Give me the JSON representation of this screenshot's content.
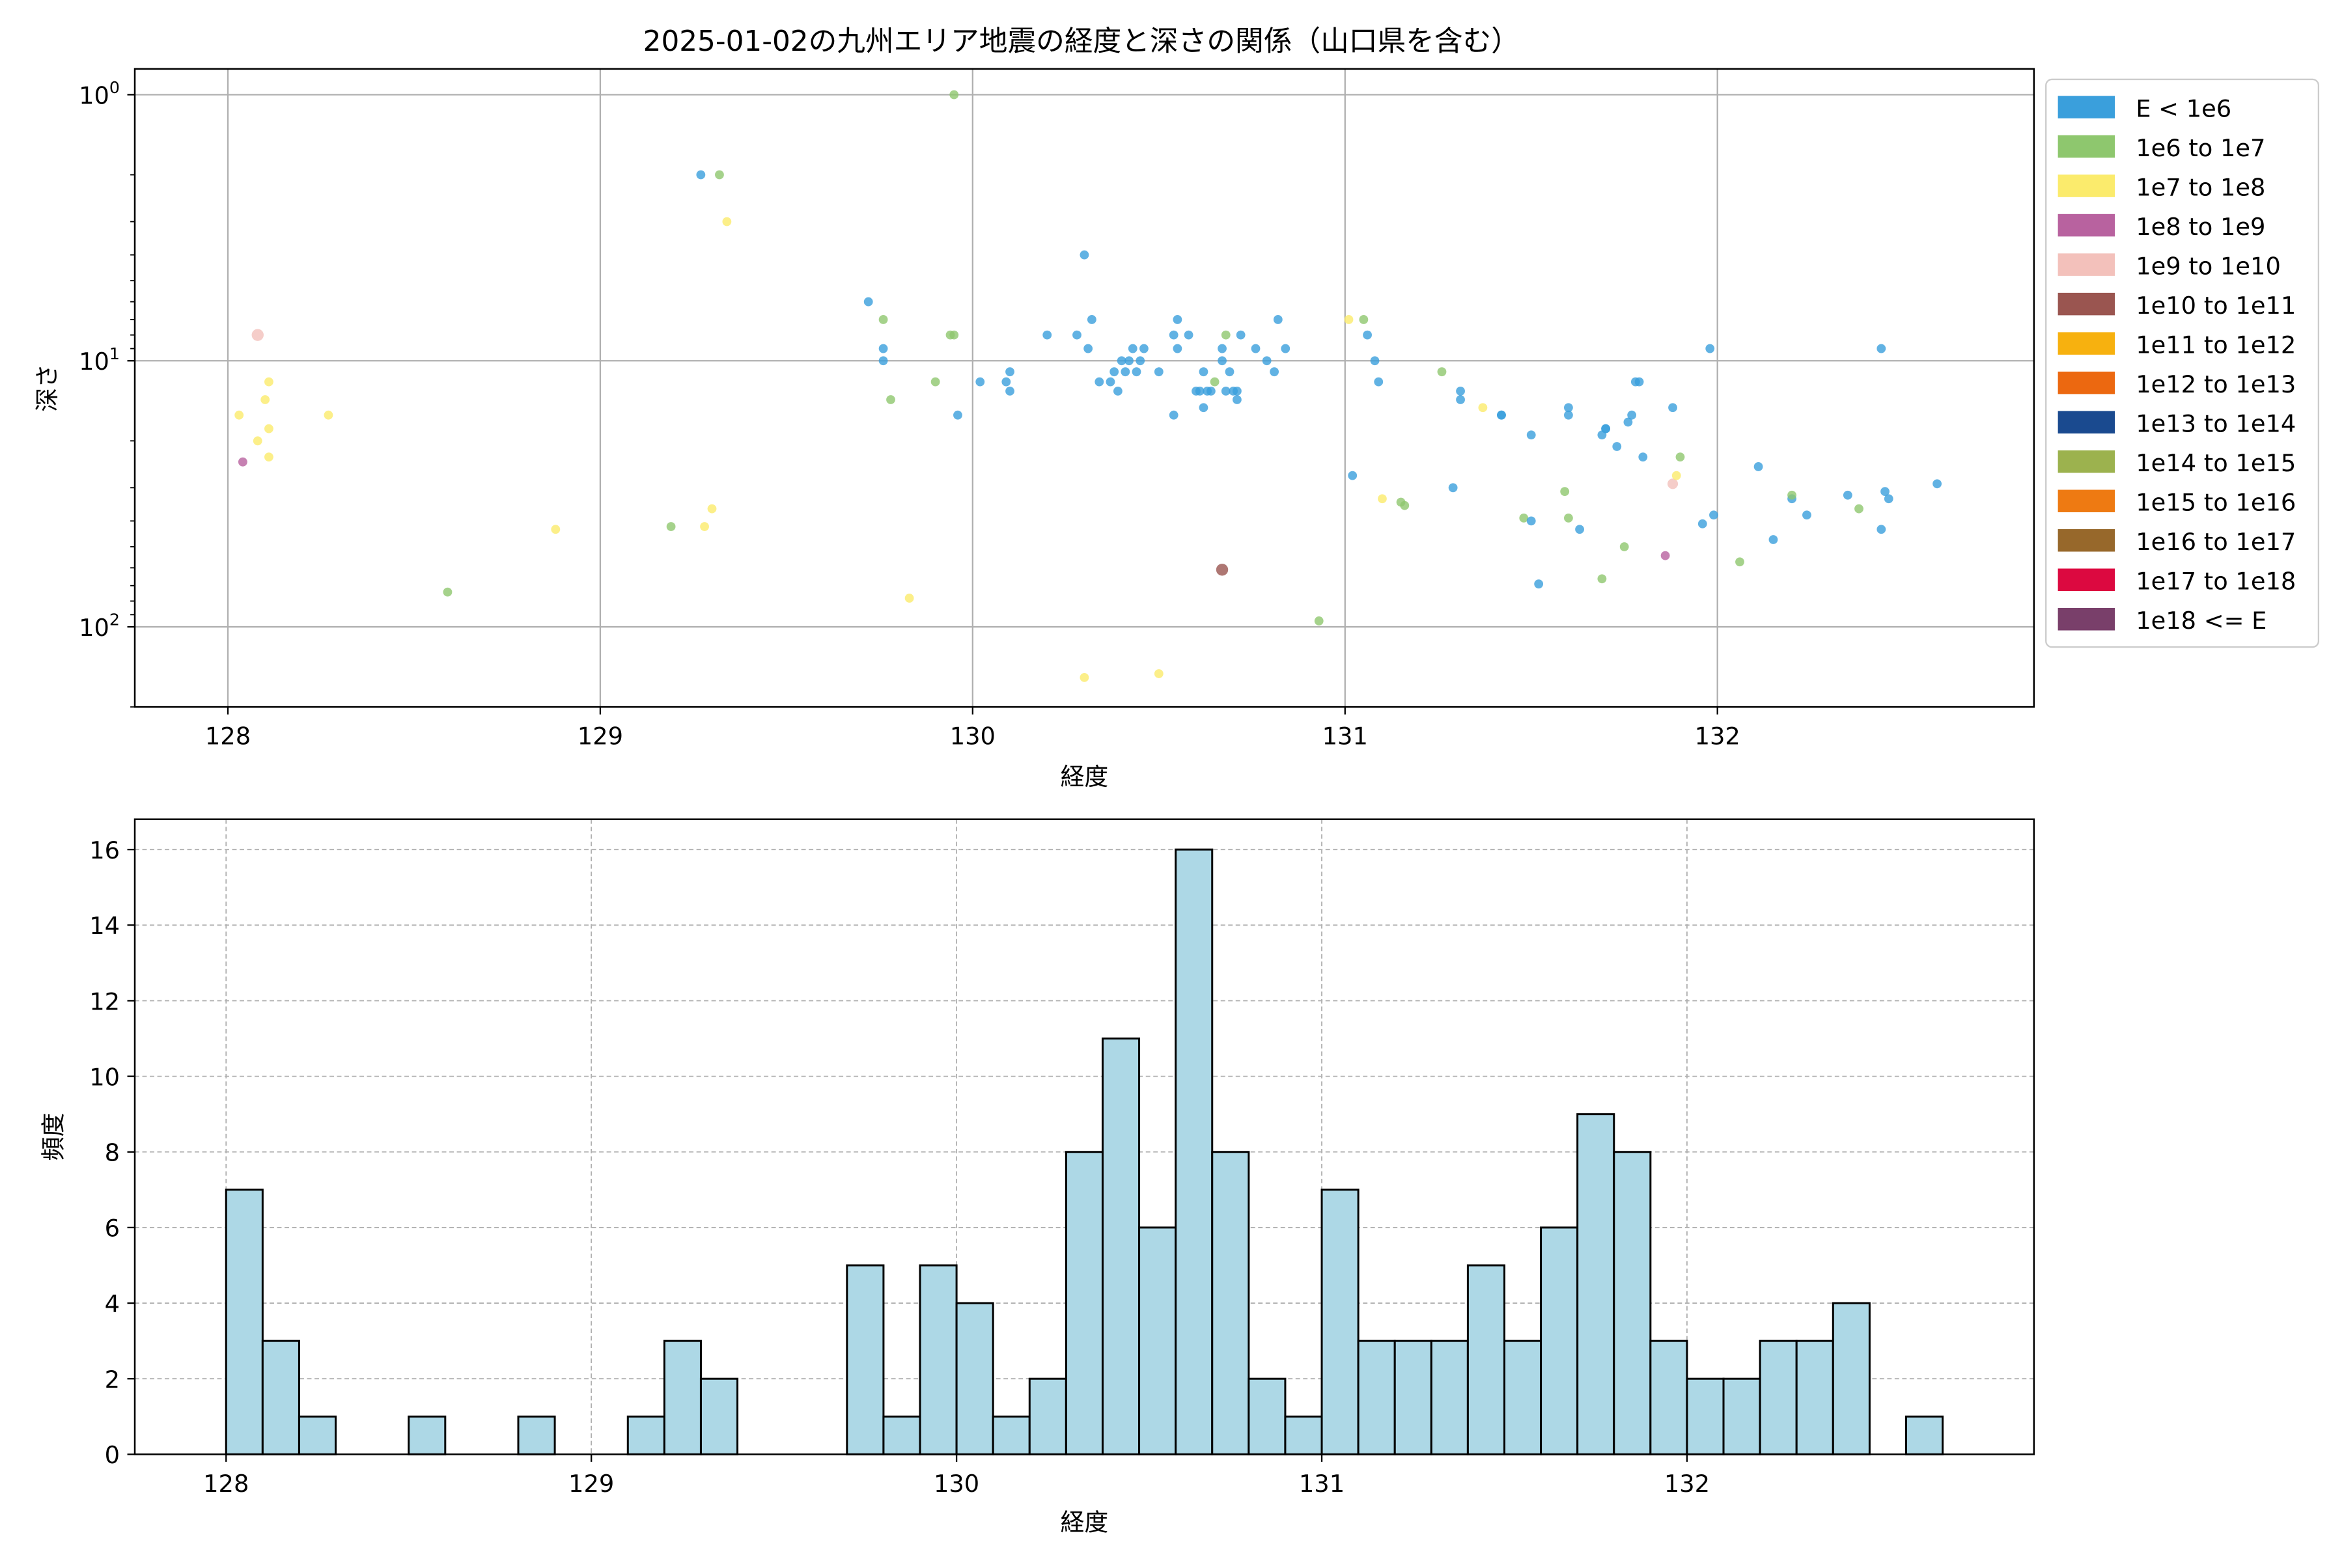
{
  "chart_data": [
    {
      "type": "scatter",
      "title": "2025-01-02の九州エリア地震の経度と深さの関係（山口県を含む）",
      "xlabel": "経度",
      "ylabel": "深さ",
      "xlim": [
        127.75,
        132.85
      ],
      "ylim": [
        200,
        0.8
      ],
      "y_scale": "log",
      "y_inverted": true,
      "grid": true,
      "legend_position": "outside-right",
      "x_ticks": [
        128,
        129,
        130,
        131,
        132
      ],
      "y_ticks": [
        {
          "value": 1,
          "base": "10",
          "exp": "0"
        },
        {
          "value": 10,
          "base": "10",
          "exp": "1"
        },
        {
          "value": 100,
          "base": "10",
          "exp": "2"
        }
      ],
      "legend": [
        {
          "label": "E < 1e6",
          "color": "#3a9fdc"
        },
        {
          "label": "1e6 to 1e7",
          "color": "#8ec76e"
        },
        {
          "label": "1e7 to 1e8",
          "color": "#fbeb6c"
        },
        {
          "label": "1e8 to 1e9",
          "color": "#b8629f"
        },
        {
          "label": "1e9 to 1e10",
          "color": "#f3c1bb"
        },
        {
          "label": "1e10 to 1e11",
          "color": "#9a5550"
        },
        {
          "label": "1e11 to 1e12",
          "color": "#f7b10f"
        },
        {
          "label": "1e12 to 1e13",
          "color": "#ec6810"
        },
        {
          "label": "1e13 to 1e14",
          "color": "#1a4a8f"
        },
        {
          "label": "1e14 to 1e15",
          "color": "#9cb24e"
        },
        {
          "label": "1e15 to 1e16",
          "color": "#ee7a12"
        },
        {
          "label": "1e16 to 1e17",
          "color": "#97682b"
        },
        {
          "label": "1e17 to 1e18",
          "color": "#dc0940"
        },
        {
          "label": "1e18 <= E",
          "color": "#793f6a"
        }
      ],
      "points": [
        {
          "x": 128.03,
          "y": 16,
          "c": 2
        },
        {
          "x": 128.04,
          "y": 24,
          "c": 3
        },
        {
          "x": 128.08,
          "y": 8,
          "c": 4,
          "s": 7
        },
        {
          "x": 128.08,
          "y": 20,
          "c": 2
        },
        {
          "x": 128.1,
          "y": 14,
          "c": 2
        },
        {
          "x": 128.11,
          "y": 12,
          "c": 2
        },
        {
          "x": 128.11,
          "y": 18,
          "c": 2
        },
        {
          "x": 128.11,
          "y": 23,
          "c": 2
        },
        {
          "x": 128.27,
          "y": 16,
          "c": 2
        },
        {
          "x": 128.59,
          "y": 74,
          "c": 1
        },
        {
          "x": 128.88,
          "y": 43,
          "c": 2
        },
        {
          "x": 129.19,
          "y": 42,
          "c": 1
        },
        {
          "x": 129.27,
          "y": 2,
          "c": 0
        },
        {
          "x": 129.28,
          "y": 42,
          "c": 2
        },
        {
          "x": 129.3,
          "y": 36,
          "c": 2
        },
        {
          "x": 129.32,
          "y": 2,
          "c": 1
        },
        {
          "x": 129.34,
          "y": 3,
          "c": 2
        },
        {
          "x": 129.72,
          "y": 6,
          "c": 0
        },
        {
          "x": 129.76,
          "y": 9,
          "c": 0
        },
        {
          "x": 129.76,
          "y": 10,
          "c": 0
        },
        {
          "x": 129.76,
          "y": 7,
          "c": 1
        },
        {
          "x": 129.78,
          "y": 14,
          "c": 1
        },
        {
          "x": 129.83,
          "y": 78,
          "c": 2
        },
        {
          "x": 129.9,
          "y": 12,
          "c": 1
        },
        {
          "x": 129.94,
          "y": 8,
          "c": 1
        },
        {
          "x": 129.95,
          "y": 8,
          "c": 1
        },
        {
          "x": 129.95,
          "y": 1,
          "c": 1
        },
        {
          "x": 129.96,
          "y": 16,
          "c": 0
        },
        {
          "x": 130.02,
          "y": 12,
          "c": 0
        },
        {
          "x": 130.09,
          "y": 12,
          "c": 0
        },
        {
          "x": 130.1,
          "y": 11,
          "c": 0
        },
        {
          "x": 130.1,
          "y": 13,
          "c": 0
        },
        {
          "x": 130.2,
          "y": 8,
          "c": 0
        },
        {
          "x": 130.28,
          "y": 8,
          "c": 0
        },
        {
          "x": 130.3,
          "y": 4,
          "c": 0
        },
        {
          "x": 130.31,
          "y": 9,
          "c": 0
        },
        {
          "x": 130.32,
          "y": 7,
          "c": 0
        },
        {
          "x": 130.3,
          "y": 155,
          "c": 2
        },
        {
          "x": 130.34,
          "y": 12,
          "c": 0
        },
        {
          "x": 130.37,
          "y": 12,
          "c": 0
        },
        {
          "x": 130.38,
          "y": 11,
          "c": 0
        },
        {
          "x": 130.39,
          "y": 13,
          "c": 0
        },
        {
          "x": 130.4,
          "y": 10,
          "c": 0
        },
        {
          "x": 130.41,
          "y": 11,
          "c": 0
        },
        {
          "x": 130.42,
          "y": 10,
          "c": 0
        },
        {
          "x": 130.43,
          "y": 9,
          "c": 0
        },
        {
          "x": 130.44,
          "y": 11,
          "c": 0
        },
        {
          "x": 130.45,
          "y": 10,
          "c": 0
        },
        {
          "x": 130.46,
          "y": 9,
          "c": 0
        },
        {
          "x": 130.5,
          "y": 11,
          "c": 0
        },
        {
          "x": 130.5,
          "y": 150,
          "c": 2
        },
        {
          "x": 130.54,
          "y": 8,
          "c": 0
        },
        {
          "x": 130.54,
          "y": 16,
          "c": 0
        },
        {
          "x": 130.55,
          "y": 7,
          "c": 0
        },
        {
          "x": 130.55,
          "y": 9,
          "c": 0
        },
        {
          "x": 130.58,
          "y": 8,
          "c": 0
        },
        {
          "x": 130.6,
          "y": 13,
          "c": 0
        },
        {
          "x": 130.61,
          "y": 13,
          "c": 0
        },
        {
          "x": 130.62,
          "y": 15,
          "c": 0
        },
        {
          "x": 130.62,
          "y": 11,
          "c": 0
        },
        {
          "x": 130.63,
          "y": 13,
          "c": 0
        },
        {
          "x": 130.64,
          "y": 13,
          "c": 0
        },
        {
          "x": 130.65,
          "y": 12,
          "c": 1
        },
        {
          "x": 130.67,
          "y": 9,
          "c": 0
        },
        {
          "x": 130.67,
          "y": 10,
          "c": 0
        },
        {
          "x": 130.68,
          "y": 13,
          "c": 0
        },
        {
          "x": 130.68,
          "y": 8,
          "c": 1
        },
        {
          "x": 130.67,
          "y": 61,
          "c": 5,
          "s": 7
        },
        {
          "x": 130.69,
          "y": 11,
          "c": 0
        },
        {
          "x": 130.7,
          "y": 13,
          "c": 0
        },
        {
          "x": 130.71,
          "y": 14,
          "c": 0
        },
        {
          "x": 130.71,
          "y": 13,
          "c": 0
        },
        {
          "x": 130.72,
          "y": 8,
          "c": 0
        },
        {
          "x": 130.76,
          "y": 9,
          "c": 0
        },
        {
          "x": 130.79,
          "y": 10,
          "c": 0
        },
        {
          "x": 130.81,
          "y": 11,
          "c": 0
        },
        {
          "x": 130.82,
          "y": 7,
          "c": 0
        },
        {
          "x": 130.84,
          "y": 9,
          "c": 0
        },
        {
          "x": 130.93,
          "y": 95,
          "c": 1
        },
        {
          "x": 131.01,
          "y": 7,
          "c": 2
        },
        {
          "x": 131.02,
          "y": 27,
          "c": 0
        },
        {
          "x": 131.05,
          "y": 7,
          "c": 1
        },
        {
          "x": 131.06,
          "y": 8,
          "c": 0
        },
        {
          "x": 131.08,
          "y": 10,
          "c": 0
        },
        {
          "x": 131.09,
          "y": 12,
          "c": 0
        },
        {
          "x": 131.1,
          "y": 33,
          "c": 2
        },
        {
          "x": 131.15,
          "y": 34,
          "c": 1
        },
        {
          "x": 131.16,
          "y": 35,
          "c": 1
        },
        {
          "x": 131.26,
          "y": 11,
          "c": 1
        },
        {
          "x": 131.29,
          "y": 30,
          "c": 0
        },
        {
          "x": 131.31,
          "y": 14,
          "c": 0
        },
        {
          "x": 131.31,
          "y": 13,
          "c": 0
        },
        {
          "x": 131.37,
          "y": 15,
          "c": 2
        },
        {
          "x": 131.42,
          "y": 16,
          "c": 0
        },
        {
          "x": 131.42,
          "y": 16,
          "c": 0
        },
        {
          "x": 131.48,
          "y": 39,
          "c": 1
        },
        {
          "x": 131.5,
          "y": 19,
          "c": 0
        },
        {
          "x": 131.5,
          "y": 40,
          "c": 0
        },
        {
          "x": 131.52,
          "y": 69,
          "c": 0
        },
        {
          "x": 131.59,
          "y": 31,
          "c": 1
        },
        {
          "x": 131.6,
          "y": 16,
          "c": 0
        },
        {
          "x": 131.6,
          "y": 15,
          "c": 0
        },
        {
          "x": 131.6,
          "y": 39,
          "c": 1
        },
        {
          "x": 131.63,
          "y": 43,
          "c": 0
        },
        {
          "x": 131.69,
          "y": 19,
          "c": 0
        },
        {
          "x": 131.69,
          "y": 66,
          "c": 1
        },
        {
          "x": 131.7,
          "y": 18,
          "c": 0
        },
        {
          "x": 131.7,
          "y": 18,
          "c": 0
        },
        {
          "x": 131.73,
          "y": 21,
          "c": 0
        },
        {
          "x": 131.75,
          "y": 50,
          "c": 1
        },
        {
          "x": 131.76,
          "y": 17,
          "c": 0
        },
        {
          "x": 131.77,
          "y": 16,
          "c": 0
        },
        {
          "x": 131.78,
          "y": 12,
          "c": 0
        },
        {
          "x": 131.79,
          "y": 12,
          "c": 0
        },
        {
          "x": 131.8,
          "y": 23,
          "c": 0
        },
        {
          "x": 131.86,
          "y": 54,
          "c": 3
        },
        {
          "x": 131.88,
          "y": 15,
          "c": 0
        },
        {
          "x": 131.88,
          "y": 29,
          "c": 4,
          "s": 6
        },
        {
          "x": 131.89,
          "y": 27,
          "c": 2
        },
        {
          "x": 131.9,
          "y": 23,
          "c": 1
        },
        {
          "x": 131.96,
          "y": 41,
          "c": 0
        },
        {
          "x": 131.98,
          "y": 9,
          "c": 0
        },
        {
          "x": 131.99,
          "y": 38,
          "c": 0
        },
        {
          "x": 132.06,
          "y": 57,
          "c": 1
        },
        {
          "x": 132.11,
          "y": 25,
          "c": 0
        },
        {
          "x": 132.15,
          "y": 47,
          "c": 0
        },
        {
          "x": 132.2,
          "y": 33,
          "c": 0
        },
        {
          "x": 132.2,
          "y": 32,
          "c": 1
        },
        {
          "x": 132.24,
          "y": 38,
          "c": 0
        },
        {
          "x": 132.35,
          "y": 32,
          "c": 0
        },
        {
          "x": 132.38,
          "y": 36,
          "c": 1
        },
        {
          "x": 132.44,
          "y": 9,
          "c": 0
        },
        {
          "x": 132.44,
          "y": 43,
          "c": 0
        },
        {
          "x": 132.45,
          "y": 31,
          "c": 0
        },
        {
          "x": 132.46,
          "y": 33,
          "c": 0
        },
        {
          "x": 132.59,
          "y": 29,
          "c": 0
        }
      ]
    },
    {
      "type": "bar",
      "xlabel": "経度",
      "ylabel": "頻度",
      "xlim": [
        127.75,
        132.95
      ],
      "ylim": [
        0,
        16.8
      ],
      "grid": true,
      "x_ticks": [
        128,
        129,
        130,
        131,
        132
      ],
      "y_ticks": [
        0,
        2,
        4,
        6,
        8,
        10,
        12,
        14,
        16
      ],
      "bin_start": 128.0,
      "bin_width": 0.1,
      "color": "#add8e6",
      "edge_color": "#000000",
      "counts": [
        7,
        3,
        1,
        0,
        0,
        1,
        0,
        0,
        1,
        0,
        0,
        1,
        3,
        2,
        0,
        0,
        0,
        5,
        1,
        5,
        4,
        1,
        2,
        8,
        11,
        6,
        16,
        8,
        2,
        1,
        7,
        3,
        3,
        3,
        5,
        3,
        6,
        9,
        8,
        3,
        2,
        2,
        3,
        3,
        4,
        0,
        1
      ]
    }
  ]
}
